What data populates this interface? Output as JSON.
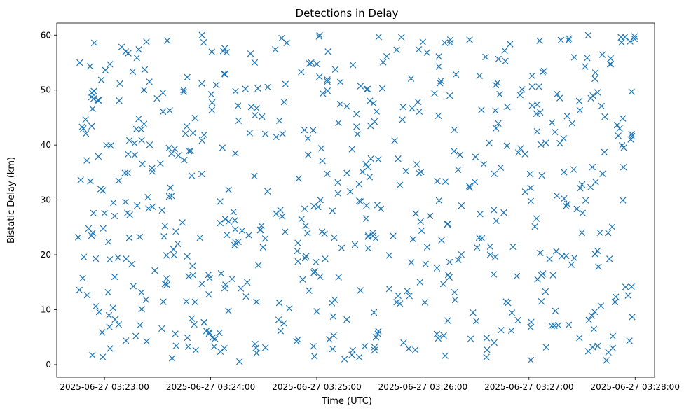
{
  "chart_data": {
    "type": "scatter",
    "title": "Detections in Delay",
    "xlabel": "Time (UTC)",
    "ylabel": "Bistatic Delay (km)",
    "marker": "x",
    "color": "#1f77b4",
    "grid": false,
    "legend": "none",
    "xlim": [
      "2025-06-27 03:22:33",
      "2025-06-27 03:28:11"
    ],
    "ylim": [
      -2.3,
      62.2
    ],
    "x_ticks": [
      "2025-06-27 03:23:00",
      "2025-06-27 03:24:00",
      "2025-06-27 03:25:00",
      "2025-06-27 03:26:00",
      "2025-06-27 03:27:00",
      "2025-06-27 03:28:00"
    ],
    "y_ticks": [
      "0",
      "10",
      "20",
      "30",
      "40",
      "50",
      "60"
    ],
    "x_range": [
      "2025-06-27 03:22:43",
      "2025-06-27 03:28:00"
    ],
    "y_range": [
      0.5,
      60
    ],
    "point_count": 634,
    "points": [
      [
        "2025-06-27 03:22:46",
        55
      ],
      [
        "2025-06-27 03:22:48",
        43
      ],
      [
        "2025-06-27 03:22:50",
        37.2
      ],
      [
        "2025-06-27 03:22:51",
        24.8
      ],
      [
        "2025-06-27 03:22:52",
        33.4
      ],
      [
        "2025-06-27 03:22:54",
        49.8
      ],
      [
        "2025-06-27 03:22:55",
        19.3
      ],
      [
        "2025-06-27 03:22:57",
        9.6
      ],
      [
        "2025-06-27 03:22:59",
        1.4
      ],
      [
        "2025-06-27 03:23:03",
        54.7
      ],
      [
        "2025-06-27 03:23:05",
        29.5
      ],
      [
        "2025-06-27 03:23:08",
        7.3
      ],
      [
        "2025-06-27 03:23:12",
        57
      ],
      [
        "2025-06-27 03:23:14",
        23.1
      ],
      [
        "2025-06-27 03:23:18",
        42.9
      ],
      [
        "2025-06-27 03:23:21",
        10.1
      ],
      [
        "2025-06-27 03:23:27",
        35.2
      ],
      [
        "2025-06-27 03:23:33",
        49.5
      ],
      [
        "2025-06-27 03:23:40",
        5.6
      ],
      [
        "2025-06-27 03:23:44",
        25.9
      ],
      [
        "2025-06-27 03:23:50",
        16.3
      ],
      [
        "2025-06-27 03:23:55",
        51.2
      ],
      [
        "2025-06-27 03:24:02",
        3.3
      ],
      [
        "2025-06-27 03:24:08",
        57.6
      ],
      [
        "2025-06-27 03:24:14",
        38.5
      ],
      [
        "2025-06-27 03:24:20",
        12.4
      ],
      [
        "2025-06-27 03:24:26",
        46.7
      ],
      [
        "2025-06-27 03:24:31",
        3.1
      ],
      [
        "2025-06-27 03:24:37",
        27.5
      ],
      [
        "2025-06-27 03:24:43",
        58.6
      ],
      [
        "2025-06-27 03:24:49",
        20.7
      ],
      [
        "2025-06-27 03:24:55",
        41.2
      ],
      [
        "2025-06-27 03:25:00",
        9.7
      ],
      [
        "2025-06-27 03:25:06",
        51.9
      ],
      [
        "2025-06-27 03:25:12",
        31.2
      ],
      [
        "2025-06-27 03:25:17",
        8.2
      ],
      [
        "2025-06-27 03:25:23",
        42
      ],
      [
        "2025-06-27 03:25:29",
        23.3
      ],
      [
        "2025-06-27 03:25:35",
        59.7
      ],
      [
        "2025-06-27 03:25:41",
        13.8
      ],
      [
        "2025-06-27 03:25:46",
        37.5
      ],
      [
        "2025-06-27 03:25:52",
        2.9
      ],
      [
        "2025-06-27 03:25:58",
        46.1
      ],
      [
        "2025-06-27 03:26:04",
        27.1
      ],
      [
        "2025-06-27 03:26:09",
        56.1
      ],
      [
        "2025-06-27 03:26:15",
        15.9
      ],
      [
        "2025-06-27 03:26:21",
        38.2
      ],
      [
        "2025-06-27 03:26:27",
        4.7
      ],
      [
        "2025-06-27 03:26:32",
        52.6
      ],
      [
        "2025-06-27 03:26:38",
        21.5
      ],
      [
        "2025-06-27 03:26:44",
        35.9
      ],
      [
        "2025-06-27 03:26:50",
        6.2
      ],
      [
        "2025-06-27 03:26:55",
        49.1
      ],
      [
        "2025-06-27 03:27:01",
        29.8
      ],
      [
        "2025-06-27 03:27:07",
        11.5
      ],
      [
        "2025-06-27 03:27:13",
        44.1
      ],
      [
        "2025-06-27 03:27:18",
        59.1
      ],
      [
        "2025-06-27 03:27:24",
        18.2
      ],
      [
        "2025-06-27 03:27:30",
        32.8
      ],
      [
        "2025-06-27 03:27:36",
        3.2
      ],
      [
        "2025-06-27 03:27:41",
        47.1
      ],
      [
        "2025-06-27 03:27:47",
        25.1
      ],
      [
        "2025-06-27 03:27:52",
        59.6
      ],
      [
        "2025-06-27 03:27:56",
        12.6
      ],
      [
        "2025-06-27 03:27:58",
        42
      ]
    ]
  }
}
